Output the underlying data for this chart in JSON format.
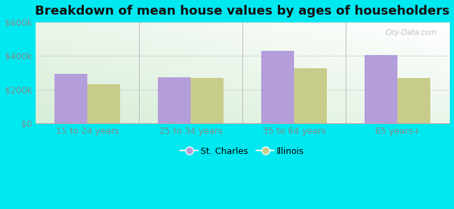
{
  "title": "Breakdown of mean house values by ages of householders",
  "categories": [
    "15 to 24 years",
    "25 to 34 years",
    "35 to 64 years",
    "65 years+"
  ],
  "st_charles": [
    295000,
    275000,
    432000,
    405000
  ],
  "illinois": [
    232000,
    268000,
    325000,
    268000
  ],
  "bar_color_stcharles": "#b39ddb",
  "bar_color_illinois": "#c8cc8a",
  "ylim": [
    0,
    600000
  ],
  "yticks": [
    0,
    200000,
    400000,
    600000
  ],
  "ytick_labels": [
    "$0",
    "$200k",
    "$400k",
    "$600k"
  ],
  "background_color": "#00e8f0",
  "legend_stcharles": "St. Charles",
  "legend_illinois": "Illinois",
  "title_fontsize": 13,
  "tick_fontsize": 9,
  "legend_fontsize": 9,
  "bar_width": 0.32,
  "watermark": "City-Data.com"
}
